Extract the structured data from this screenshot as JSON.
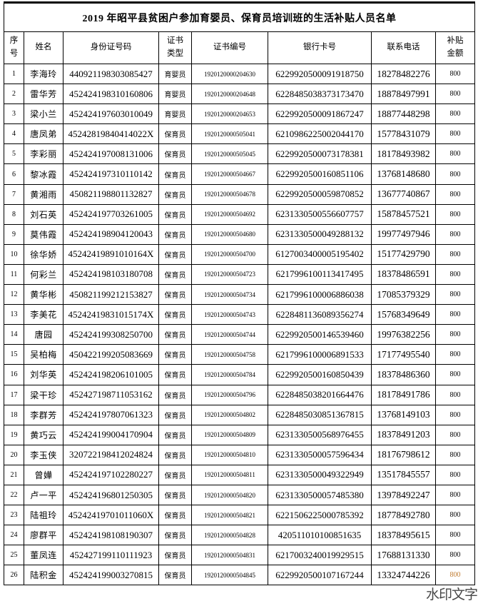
{
  "title": "2019 年昭平县贫困户参加育婴员、保育员培训班的生活补贴人员名单",
  "watermark": "水印文字",
  "colors": {
    "border": "#000000",
    "watermark": "#373737",
    "last_row_subsidy_tint": "#bf7a2e"
  },
  "columns": [
    {
      "key": "index",
      "label": "序\n号"
    },
    {
      "key": "name",
      "label": "姓名"
    },
    {
      "key": "id_number",
      "label": "身份证号码"
    },
    {
      "key": "cert_type",
      "label": "证书\n类型"
    },
    {
      "key": "cert_number",
      "label": "证书编号"
    },
    {
      "key": "bank_card",
      "label": "银行卡号"
    },
    {
      "key": "phone",
      "label": "联系电话"
    },
    {
      "key": "subsidy",
      "label": "补贴\n金额"
    }
  ],
  "rows": [
    [
      "1",
      "李海玲",
      "440921198303085427",
      "育婴员",
      "1920120000204630",
      "6229920500091918750",
      "18278482276",
      "800"
    ],
    [
      "2",
      "雷华芳",
      "452424198310160806",
      "育婴员",
      "1920120000204648",
      "6228485038373173470",
      "18878497991",
      "800"
    ],
    [
      "3",
      "梁小兰",
      "452424197603010049",
      "育婴员",
      "1920120000204653",
      "6229920500091867247",
      "18877448298",
      "800"
    ],
    [
      "4",
      "唐凤弟",
      "45242819840414022X",
      "保育员",
      "1920120000505041",
      "6210986225002044170",
      "15778431079",
      "800"
    ],
    [
      "5",
      "李彩丽",
      "452424197008131006",
      "保育员",
      "1920120000505045",
      "6229920500073178381",
      "18178493982",
      "800"
    ],
    [
      "6",
      "黎冰霞",
      "452424197310110142",
      "保育员",
      "1920120000504667",
      "6229920500160851106",
      "13768148680",
      "800"
    ],
    [
      "7",
      "黄湘雨",
      "450821198801132827",
      "保育员",
      "1920120000504678",
      "6229920500059870852",
      "13677740867",
      "800"
    ],
    [
      "8",
      "刘石英",
      "452424197703261005",
      "保育员",
      "1920120000504692",
      "6231330500556607757",
      "15878457521",
      "800"
    ],
    [
      "9",
      "莫伟霞",
      "452424198904120043",
      "保育员",
      "1920120000504680",
      "6231330500049288132",
      "19977497946",
      "800"
    ],
    [
      "10",
      "徐华娇",
      "45242419891010164X",
      "保育员",
      "1920120000504700",
      "6127003400005195402",
      "15177429790",
      "800"
    ],
    [
      "11",
      "何彩兰",
      "452424198103180708",
      "保育员",
      "1920120000504723",
      "6217996100113417495",
      "18378486591",
      "800"
    ],
    [
      "12",
      "黄华彬",
      "450821199212153827",
      "保育员",
      "1920120000504734",
      "6217996100006886038",
      "17085379329",
      "800"
    ],
    [
      "13",
      "李美花",
      "45242419831015174X",
      "保育员",
      "1920120000504743",
      "6228481136089356274",
      "15768349649",
      "800"
    ],
    [
      "14",
      "唐园",
      "452424199308250700",
      "保育员",
      "1920120000504744",
      "6229920500146539460",
      "19976382256",
      "800"
    ],
    [
      "15",
      "吴柏梅",
      "450422199205083669",
      "保育员",
      "1920120000504758",
      "6217996100006891533",
      "17177495540",
      "800"
    ],
    [
      "16",
      "刘华英",
      "452424198206101005",
      "保育员",
      "1920120000504784",
      "6229920500160850439",
      "18378486360",
      "800"
    ],
    [
      "17",
      "梁干珍",
      "452427198711053162",
      "保育员",
      "1920120000504796",
      "6228485038201664476",
      "18178491786",
      "800"
    ],
    [
      "18",
      "李群芳",
      "452424197807061323",
      "保育员",
      "1920120000504802",
      "6228485030851367815",
      "13768149103",
      "800"
    ],
    [
      "19",
      "黄巧云",
      "452424199004170904",
      "保育员",
      "1920120000504809",
      "6231330500568976455",
      "18378491203",
      "800"
    ],
    [
      "20",
      "李玉侠",
      "320722198412024824",
      "保育员",
      "1920120000504810",
      "6231330500057596434",
      "18176798612",
      "800"
    ],
    [
      "21",
      "曾嬅",
      "452424197102280227",
      "保育员",
      "1920120000504811",
      "6231330500049322949",
      "13517845557",
      "800"
    ],
    [
      "22",
      "卢一平",
      "452424196801250305",
      "保育员",
      "1920120000504820",
      "6231330500057485380",
      "13978492247",
      "800"
    ],
    [
      "23",
      "陆祖玲",
      "45242419701011060X",
      "保育员",
      "1920120000504821",
      "6221506225000785392",
      "18778492780",
      "800"
    ],
    [
      "24",
      "廖群平",
      "452424198108190307",
      "保育员",
      "1920120000504828",
      "420511010100851635",
      "18378495615",
      "800"
    ],
    [
      "25",
      "董凤连",
      "452427199110111923",
      "保育员",
      "1920120000504831",
      "6217003240019929515",
      "17688131330",
      "800"
    ],
    [
      "26",
      "陆积金",
      "452424199003270815",
      "保育员",
      "1920120000504845",
      "6229920500107167244",
      "13324744226",
      "800"
    ]
  ]
}
